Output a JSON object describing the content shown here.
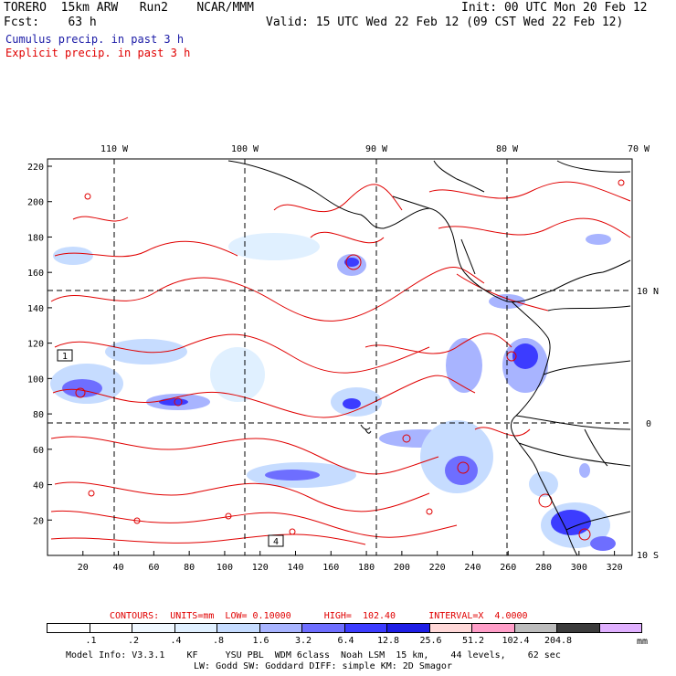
{
  "header": {
    "line1_left": "TORERO  15km ARW   Run2    NCAR/MMM",
    "line1_right": "Init: 00 UTC Mon 20 Feb 12",
    "line2_left": "Fcst:    63 h",
    "line2_right": "Valid: 15 UTC Wed 22 Feb 12 (09 CST Wed 22 Feb 12)",
    "cumulus_label": "Cumulus precip. in past 3 h",
    "explicit_label": "Explicit precip. in past 3 h"
  },
  "colors": {
    "cumulus_label": "#1a1aa6",
    "explicit_label": "#e00000",
    "contour": "#e00000",
    "coast": "#000000"
  },
  "top_axis_labels": [
    "110 W",
    "100 W",
    "90 W",
    "80 W",
    "70 W"
  ],
  "right_axis_labels": [
    "10 N",
    "0",
    "10 S"
  ],
  "left_axis_labels": [
    "220",
    "200",
    "180",
    "160",
    "140",
    "120",
    "100",
    "80",
    "60",
    "40",
    "20"
  ],
  "bottom_axis_labels": [
    "20",
    "40",
    "60",
    "80",
    "100",
    "120",
    "140",
    "160",
    "180",
    "200",
    "220",
    "240",
    "260",
    "280",
    "300",
    "320"
  ],
  "box_labels": [
    "1",
    "4"
  ],
  "contour_info": {
    "text": "CONTOURS:  UNITS=mm  LOW= 0.10000      HIGH=  102.40      INTERVAL=X  4.0000"
  },
  "colorbar": {
    "unit": "mm",
    "tick_labels": [
      ".1",
      ".2",
      ".4",
      ".8",
      "1.6",
      "3.2",
      "6.4",
      "12.8",
      "25.6",
      "51.2",
      "102.4",
      "204.8"
    ],
    "colors": [
      "#ffffff",
      "#ffffff",
      "#f0f8ff",
      "#e0f0ff",
      "#c6dcff",
      "#a8b4ff",
      "#6e6eff",
      "#3c3cff",
      "#1e1ee6",
      "#ffd8d8",
      "#ff9ec8",
      "#bcbcbc",
      "#3c3c3c",
      "#e0b0ff"
    ]
  },
  "footer": {
    "line1": "Model Info: V3.3.1    KF     YSU PBL  WDM 6class  Noah LSM  15 km,    44 levels,    62 sec",
    "line2": "LW: Godd SW: Goddard DIFF: simple KM: 2D Smagor"
  }
}
